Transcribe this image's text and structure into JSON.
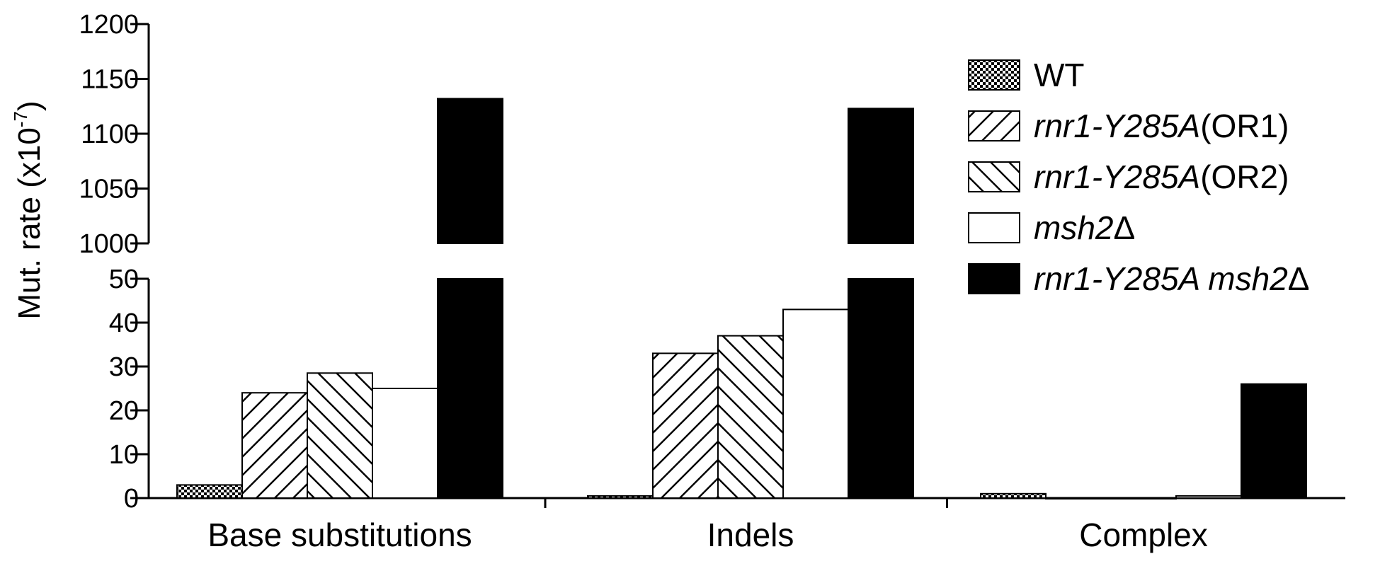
{
  "chart_data": {
    "type": "bar",
    "ylabel": "Mut. rate (x10",
    "ylabel_sup": "-7",
    "ylabel_close": ")",
    "categories": [
      "Base substitutions",
      "Indels",
      "Complex"
    ],
    "axis_break": {
      "lower": {
        "ylim": [
          0,
          50
        ],
        "ticks": [
          0,
          10,
          20,
          30,
          40,
          50
        ]
      },
      "upper": {
        "ylim": [
          1000,
          1200
        ],
        "ticks": [
          1000,
          1050,
          1100,
          1150,
          1200
        ]
      }
    },
    "series": [
      {
        "name": "WT",
        "label_parts": [
          {
            "t": "WT",
            "i": false
          }
        ],
        "pattern": "checker",
        "values": [
          3,
          0.5,
          1
        ]
      },
      {
        "name": "rnr1-Y285A(OR1)",
        "label_parts": [
          {
            "t": "rnr1-Y285A",
            "i": true
          },
          {
            "t": "(OR1)",
            "i": false
          }
        ],
        "pattern": "hatch-forward",
        "values": [
          24,
          33,
          0
        ]
      },
      {
        "name": "rnr1-Y285A(OR2)",
        "label_parts": [
          {
            "t": "rnr1-Y285A",
            "i": true
          },
          {
            "t": "(OR2)",
            "i": false
          }
        ],
        "pattern": "hatch-back",
        "values": [
          28.5,
          37,
          0
        ]
      },
      {
        "name": "msh2Δ",
        "label_parts": [
          {
            "t": "msh2",
            "i": true
          },
          {
            "t": "Δ",
            "i": false
          }
        ],
        "pattern": "white",
        "values": [
          25,
          43,
          0.5
        ]
      },
      {
        "name": "rnr1-Y285A msh2Δ",
        "label_parts": [
          {
            "t": "rnr1-Y285A msh2",
            "i": true
          },
          {
            "t": "Δ",
            "i": false
          }
        ],
        "pattern": "black",
        "values": [
          1132,
          1123,
          26
        ]
      }
    ],
    "legend_position": "right",
    "grid": false
  }
}
